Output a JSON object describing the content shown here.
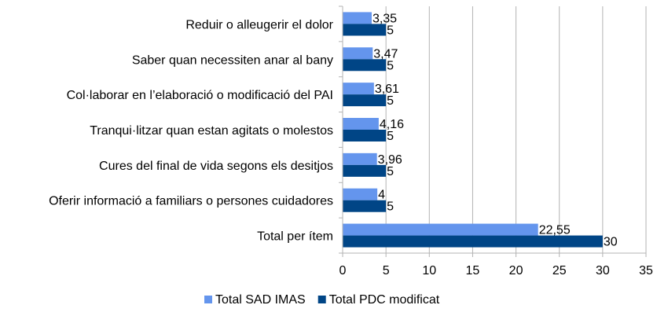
{
  "chart_data": {
    "type": "bar",
    "orientation": "horizontal",
    "categories": [
      "Reduir o alleugerir el dolor",
      "Saber quan necessiten anar al bany",
      "Col·laborar en l’elaboració o modificació del PAI",
      "Tranqui·litzar quan estan agitats o molestos",
      "Cures del final de vida segons els desitjos",
      "Oferir informació a familiars o persones cuidadores",
      "Total per ítem"
    ],
    "series": [
      {
        "name": "Total SAD IMAS",
        "color": "#6495ed",
        "values": [
          3.35,
          3.47,
          3.61,
          4.16,
          3.96,
          4,
          22.55
        ],
        "labels": [
          "3,35",
          "3,47",
          "3,61",
          "4,16",
          "3,96",
          "4",
          "22,55"
        ]
      },
      {
        "name": "Total PDC modificat",
        "color": "#004586",
        "values": [
          5,
          5,
          5,
          5,
          5,
          5,
          30
        ],
        "labels": [
          "5",
          "5",
          "5",
          "5",
          "5",
          "5",
          "30"
        ]
      }
    ],
    "xlim": [
      0,
      35
    ],
    "xticks": [
      0,
      5,
      10,
      15,
      20,
      25,
      30,
      35
    ],
    "grid": "vertical",
    "legend": "bottom"
  }
}
